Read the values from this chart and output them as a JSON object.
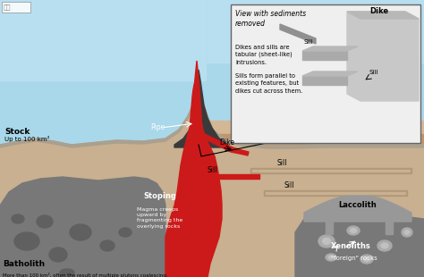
{
  "sky_top": "#a8d8ea",
  "sky_bottom": "#c8eaf5",
  "layer_colors": [
    "#c8a87a",
    "#b8906a",
    "#a07858",
    "#907060",
    "#c8a87a",
    "#b8906a",
    "#a07858",
    "#8b6850",
    "#c0a070"
  ],
  "underground_color": "#7a5c3a",
  "batholith_color": "#787878",
  "batholith_dark": "#606060",
  "magma_color": "#cc1a1a",
  "magma_dark": "#991111",
  "laccolith_color": "#989898",
  "inset_bg": "#efefef",
  "inset_border": "#666666",
  "text_white": "#ffffff",
  "text_black": "#111111",
  "arrow_white": "#ffffff",
  "arrow_black": "#333333",
  "labels": {
    "stock": "Stock",
    "stock_sub": "Up to 100 km²",
    "pipe": "Pipe",
    "dike": "Dike",
    "sill": "Sill",
    "sill2": "Sill",
    "sill3": "Sill",
    "laccolith": "Laccolith",
    "stoping": "Stoping",
    "stoping_sub": "Magma creeps\nupward by\nfragmenting the\noverlying rocks",
    "batholith": "Batholith",
    "batholith_sub": "More than 100 km², often the result of multiple plutons coalescing.",
    "xenoliths": "Xenoliths",
    "xenoliths_sub": "\"foreign\" rocks",
    "inset_header": "View with sediments\nremoved",
    "inset_body": "Dikes and sills are\ntabular (sheet-like)\nintrusions.\n\nSills form parallel to\nexisting features, but\ndikes cut across them.",
    "inset_dike": "Dike",
    "inset_sill_top": "Sill",
    "inset_sill_bot": "Sill"
  }
}
